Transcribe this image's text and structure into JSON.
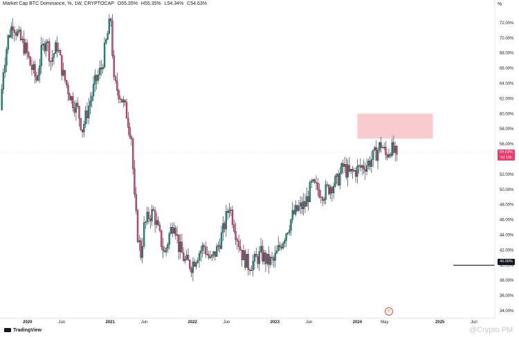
{
  "header": {
    "symbol": "Market Cap BTC Dominance, %, 1W, CRYPTOCAP",
    "open": "O55.35%",
    "high": "H55.35%",
    "low": "L54.34%",
    "close": "C54.63%"
  },
  "scale_button": "%",
  "branding": {
    "logo": "TradingView",
    "watermark": "@Crypto PM"
  },
  "badges": {
    "last_price": "54.63%",
    "countdown": "5d 13h",
    "level": "40.00%"
  },
  "event_icon": "lightning-event-icon",
  "colors": {
    "up": "#089981",
    "down": "#f23a6f",
    "zone": "#f8cccf",
    "line": "#131722"
  },
  "chart_data": {
    "type": "candlestick",
    "title": "Market Cap BTC Dominance, %, 1W, CRYPTOCAP",
    "x_tick_labels": [
      "2020",
      "Jun",
      "2021",
      "Jun",
      "2022",
      "Jun",
      "2023",
      "Jun",
      "2024",
      "May",
      "2025",
      "Jun"
    ],
    "x_tick_dates": [
      "2020-01-01",
      "2020-06-01",
      "2021-01-01",
      "2021-06-01",
      "2022-01-01",
      "2022-06-01",
      "2023-01-01",
      "2023-06-01",
      "2024-01-01",
      "2024-05-01",
      "2025-01-01",
      "2025-06-01"
    ],
    "y_tick_labels": [
      "34.00%",
      "36.00%",
      "38.00%",
      "40.00%",
      "42.00%",
      "44.00%",
      "46.00%",
      "48.00%",
      "50.00%",
      "52.00%",
      "54.00%",
      "56.00%",
      "58.00%",
      "60.00%",
      "62.00%",
      "64.00%",
      "66.00%",
      "68.00%",
      "70.00%",
      "72.00%"
    ],
    "ylim": [
      33,
      75
    ],
    "xlim": [
      "2019-09-01",
      "2025-09-01"
    ],
    "grid": false,
    "zone": {
      "x_start": "2024-01-01",
      "x_end": "2024-12-01",
      "y_low": 56.7,
      "y_high": 60.0
    },
    "horizontal_line": {
      "value": 40.0,
      "x_start": "2025-03-01",
      "x_end": "2025-09-01"
    },
    "last_price": 54.63,
    "series_points": [
      [
        "2019-09-09",
        60.5
      ],
      [
        "2019-09-23",
        66.0
      ],
      [
        "2019-10-14",
        70.0
      ],
      [
        "2019-11-04",
        72.0
      ],
      [
        "2019-12-02",
        70.0
      ],
      [
        "2019-12-30",
        68.5
      ],
      [
        "2020-01-20",
        66.5
      ],
      [
        "2020-02-17",
        64.5
      ],
      [
        "2020-03-09",
        68.0
      ],
      [
        "2020-03-30",
        70.0
      ],
      [
        "2020-04-20",
        67.0
      ],
      [
        "2020-05-18",
        69.0
      ],
      [
        "2020-06-15",
        65.0
      ],
      [
        "2020-07-20",
        62.0
      ],
      [
        "2020-08-17",
        60.5
      ],
      [
        "2020-09-07",
        58.0
      ],
      [
        "2020-10-05",
        61.0
      ],
      [
        "2020-11-02",
        64.0
      ],
      [
        "2020-11-30",
        66.0
      ],
      [
        "2020-12-28",
        70.5
      ],
      [
        "2021-01-11",
        72.5
      ],
      [
        "2021-01-25",
        64.0
      ],
      [
        "2021-02-22",
        62.5
      ],
      [
        "2021-03-22",
        60.0
      ],
      [
        "2021-04-12",
        57.0
      ],
      [
        "2021-04-26",
        48.5
      ],
      [
        "2021-05-10",
        44.0
      ],
      [
        "2021-05-24",
        41.5
      ],
      [
        "2021-06-07",
        45.0
      ],
      [
        "2021-06-28",
        46.5
      ],
      [
        "2021-07-19",
        47.0
      ],
      [
        "2021-08-09",
        44.5
      ],
      [
        "2021-09-06",
        41.5
      ],
      [
        "2021-09-27",
        44.0
      ],
      [
        "2021-10-18",
        46.0
      ],
      [
        "2021-11-08",
        42.5
      ],
      [
        "2021-12-06",
        40.5
      ],
      [
        "2022-01-03",
        40.0
      ],
      [
        "2022-01-31",
        41.5
      ],
      [
        "2022-02-28",
        42.5
      ],
      [
        "2022-03-28",
        40.5
      ],
      [
        "2022-04-25",
        42.0
      ],
      [
        "2022-05-23",
        44.5
      ],
      [
        "2022-06-20",
        48.0
      ],
      [
        "2022-07-18",
        44.5
      ],
      [
        "2022-08-15",
        41.5
      ],
      [
        "2022-09-12",
        40.0
      ],
      [
        "2022-10-10",
        40.5
      ],
      [
        "2022-11-07",
        41.5
      ],
      [
        "2022-12-05",
        40.5
      ],
      [
        "2023-01-02",
        40.5
      ],
      [
        "2023-01-30",
        42.5
      ],
      [
        "2023-02-27",
        44.5
      ],
      [
        "2023-03-27",
        46.5
      ],
      [
        "2023-04-24",
        47.5
      ],
      [
        "2023-05-22",
        48.0
      ],
      [
        "2023-06-19",
        50.5
      ],
      [
        "2023-07-17",
        50.0
      ],
      [
        "2023-08-14",
        49.5
      ],
      [
        "2023-09-11",
        50.5
      ],
      [
        "2023-10-09",
        51.0
      ],
      [
        "2023-11-06",
        53.0
      ],
      [
        "2023-12-04",
        52.0
      ],
      [
        "2024-01-01",
        52.5
      ],
      [
        "2024-01-29",
        53.0
      ],
      [
        "2024-02-26",
        53.5
      ],
      [
        "2024-03-25",
        54.5
      ],
      [
        "2024-04-22",
        56.0
      ],
      [
        "2024-05-13",
        54.5
      ],
      [
        "2024-06-03",
        55.5
      ],
      [
        "2024-06-24",
        54.63
      ]
    ]
  }
}
